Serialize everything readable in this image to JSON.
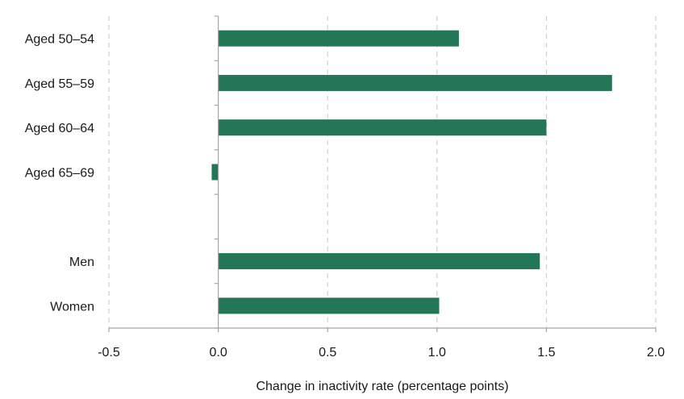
{
  "chart_data": {
    "type": "bar",
    "orientation": "horizontal",
    "categories": [
      "Aged 50–54",
      "Aged 55–59",
      "Aged 60–64",
      "Aged 65–69",
      "",
      "Men",
      "Women"
    ],
    "values": [
      1.1,
      1.8,
      1.5,
      -0.03,
      null,
      1.47,
      1.01
    ],
    "xlabel": "Change in inactivity rate (percentage points)",
    "xlim": [
      -0.5,
      2.0
    ],
    "xticks": [
      -0.5,
      0.0,
      0.5,
      1.0,
      1.5,
      2.0
    ],
    "xtick_labels": [
      "-0.5",
      "0.0",
      "0.5",
      "1.0",
      "1.5",
      "2.0"
    ],
    "bar_color": "#237656",
    "grid": "vertical dashed",
    "legend": "none"
  }
}
